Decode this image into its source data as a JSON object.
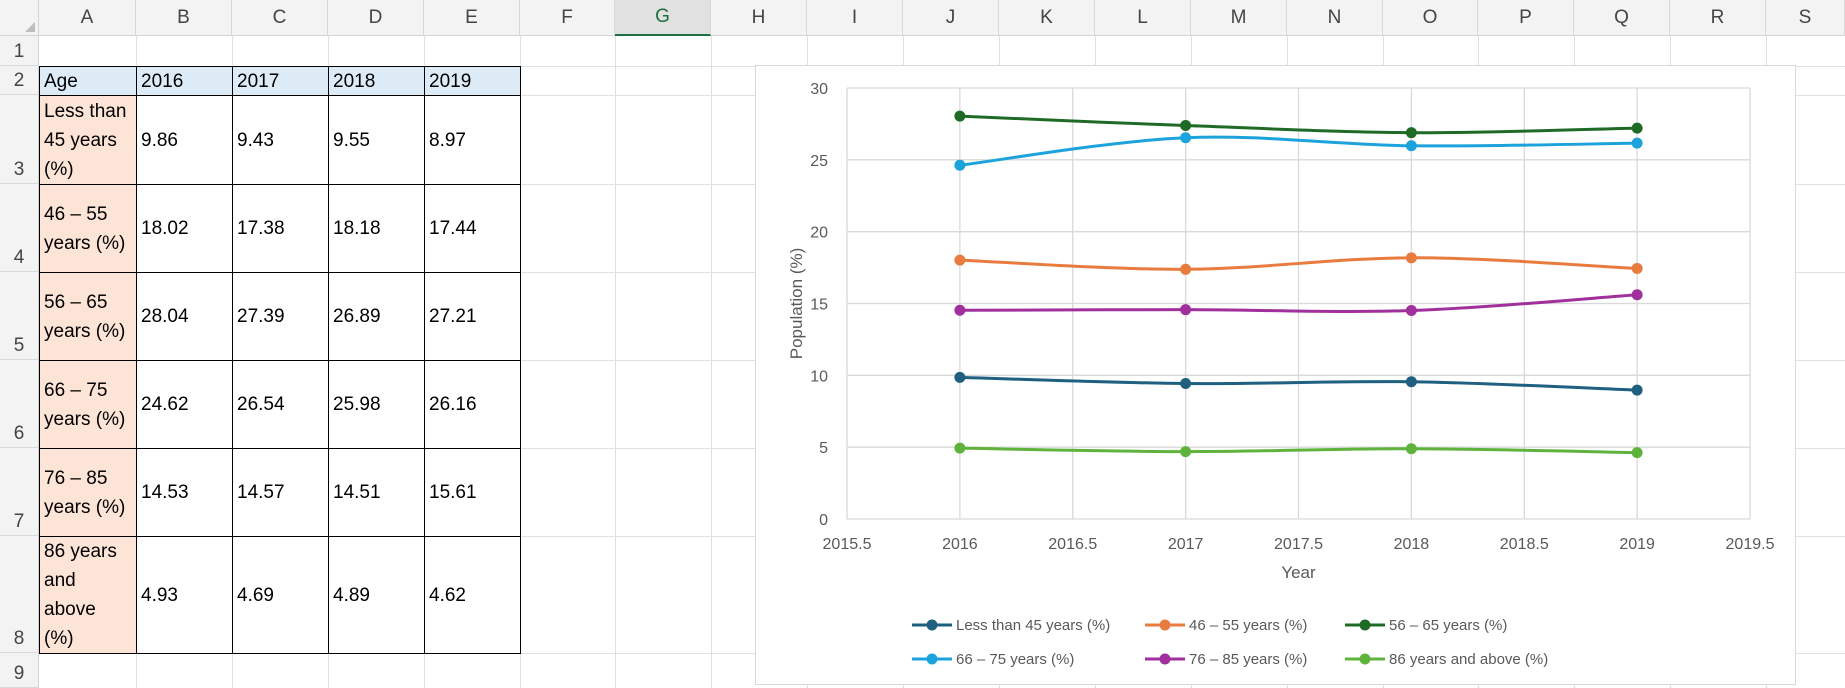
{
  "columns": [
    "A",
    "B",
    "C",
    "D",
    "E",
    "F",
    "G",
    "H",
    "I",
    "J",
    "K",
    "L",
    "M",
    "N",
    "O",
    "P",
    "Q",
    "R",
    "S"
  ],
  "active_column": "G",
  "rows": [
    "1",
    "2",
    "3",
    "4",
    "5",
    "6",
    "7",
    "8",
    "9"
  ],
  "table": {
    "header": [
      "Age",
      "2016",
      "2017",
      "2018",
      "2019"
    ],
    "rows": [
      {
        "label_lines": [
          "Less than",
          "45 years",
          "(%)"
        ],
        "values": [
          "9.86",
          "9.43",
          "9.55",
          "8.97"
        ]
      },
      {
        "label_lines": [
          "46 – 55",
          "years (%)"
        ],
        "values": [
          "18.02",
          "17.38",
          "18.18",
          "17.44"
        ]
      },
      {
        "label_lines": [
          "56 – 65",
          "years (%)"
        ],
        "values": [
          "28.04",
          "27.39",
          "26.89",
          "27.21"
        ]
      },
      {
        "label_lines": [
          "66 – 75",
          "years (%)"
        ],
        "values": [
          "24.62",
          "26.54",
          "25.98",
          "26.16"
        ]
      },
      {
        "label_lines": [
          "76 – 85",
          "years (%)"
        ],
        "values": [
          "14.53",
          "14.57",
          "14.51",
          "15.61"
        ]
      },
      {
        "label_lines": [
          "86 years",
          "and",
          "above",
          "(%)"
        ],
        "values": [
          "4.93",
          "4.69",
          "4.89",
          "4.62"
        ]
      }
    ]
  },
  "chart_data": {
    "type": "line",
    "smooth": true,
    "title": "",
    "xlabel": "Year",
    "ylabel": "Population (%)",
    "xlim": [
      2015.5,
      2019.5
    ],
    "ylim": [
      0,
      30
    ],
    "x_ticks": [
      "2015.5",
      "2016",
      "2016.5",
      "2017",
      "2017.5",
      "2018",
      "2018.5",
      "2019",
      "2019.5"
    ],
    "y_ticks": [
      "0",
      "5",
      "10",
      "15",
      "20",
      "25",
      "30"
    ],
    "grid": true,
    "legend_position": "bottom",
    "x": [
      2016,
      2017,
      2018,
      2019
    ],
    "series": [
      {
        "name": "Less than 45 years (%)",
        "color": "#1f5f7f",
        "values": [
          9.86,
          9.43,
          9.55,
          8.97
        ]
      },
      {
        "name": "46 – 55 years (%)",
        "color": "#e87c3e",
        "values": [
          18.02,
          17.38,
          18.18,
          17.44
        ]
      },
      {
        "name": "56 – 65 years (%)",
        "color": "#1f6b26",
        "values": [
          28.04,
          27.39,
          26.89,
          27.21
        ]
      },
      {
        "name": "66 – 75 years (%)",
        "color": "#1ca3dc",
        "values": [
          24.62,
          26.54,
          25.98,
          26.16
        ]
      },
      {
        "name": "76 – 85 years (%)",
        "color": "#a0309c",
        "values": [
          14.53,
          14.57,
          14.51,
          15.61
        ]
      },
      {
        "name": "86 years and above (%)",
        "color": "#5fb33d",
        "values": [
          4.93,
          4.69,
          4.89,
          4.62
        ]
      }
    ]
  }
}
